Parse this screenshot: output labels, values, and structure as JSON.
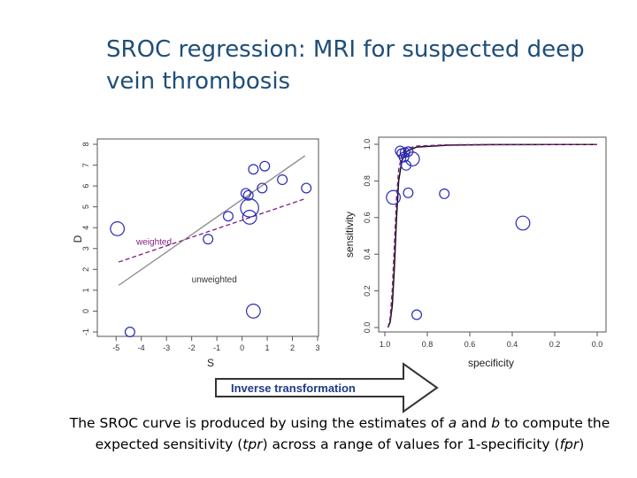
{
  "slide": {
    "title": "SROC regression: MRI for suspected deep vein thrombosis",
    "caption_parts": [
      "The SROC curve is produced by using the estimates of ",
      "a",
      " and ",
      "b",
      " to compute the expected sensitivity (",
      "tpr",
      ") across a range of values for 1-specificity (",
      "fpr",
      ")"
    ],
    "arrow_label": "Inverse transformation"
  },
  "colors": {
    "title": "#1f4e79",
    "points": "#2a2ab8",
    "weighted": "#7a1f7a",
    "unweighted": "#888888",
    "curve": "#111111"
  },
  "chart_data": [
    {
      "type": "scatter",
      "title": "",
      "xlabel": "S",
      "ylabel": "D",
      "xlim": [
        -5.5,
        3
      ],
      "ylim": [
        -1,
        8
      ],
      "xticks": [
        -5,
        -4,
        -3,
        -2,
        -1,
        0,
        1,
        2,
        3
      ],
      "yticks": [
        -1,
        0,
        1,
        2,
        3,
        4,
        5,
        6,
        7,
        8
      ],
      "points": [
        {
          "x": -4.95,
          "y": 3.95,
          "size": 2
        },
        {
          "x": -4.45,
          "y": -1.0,
          "size": 1
        },
        {
          "x": -1.35,
          "y": 3.45,
          "size": 1
        },
        {
          "x": -0.55,
          "y": 4.55,
          "size": 1
        },
        {
          "x": 0.15,
          "y": 5.65,
          "size": 1
        },
        {
          "x": 0.25,
          "y": 5.55,
          "size": 1
        },
        {
          "x": 0.3,
          "y": 4.95,
          "size": 3
        },
        {
          "x": 0.3,
          "y": 4.5,
          "size": 2
        },
        {
          "x": 0.45,
          "y": 6.8,
          "size": 1
        },
        {
          "x": 0.8,
          "y": 5.9,
          "size": 1
        },
        {
          "x": 0.9,
          "y": 6.95,
          "size": 1
        },
        {
          "x": 1.6,
          "y": 6.3,
          "size": 1
        },
        {
          "x": 2.55,
          "y": 5.9,
          "size": 1
        },
        {
          "x": 0.45,
          "y": 0.0,
          "size": 2
        }
      ],
      "lines": [
        {
          "name": "weighted",
          "style": "dashed",
          "intercept": 4.36,
          "slope": 0.41,
          "x_range": [
            -4.9,
            2.5
          ]
        },
        {
          "name": "unweighted",
          "style": "solid",
          "intercept": 5.35,
          "slope": 0.84,
          "x_range": [
            -4.9,
            2.5
          ]
        }
      ],
      "annotations": [
        "weighted",
        "unweighted"
      ]
    },
    {
      "type": "line",
      "title": "",
      "xlabel": "specificity",
      "ylabel": "sensitivity",
      "xlim": [
        1.0,
        0.0
      ],
      "ylim": [
        0.0,
        1.0
      ],
      "xticks": [
        1.0,
        0.8,
        0.6,
        0.4,
        0.2,
        0.0
      ],
      "yticks": [
        0.0,
        0.2,
        0.4,
        0.6,
        0.8,
        1.0
      ],
      "points": [
        {
          "x": 0.96,
          "y": 0.71,
          "size": 2
        },
        {
          "x": 0.72,
          "y": 0.73,
          "size": 1
        },
        {
          "x": 0.928,
          "y": 0.964,
          "size": 1
        },
        {
          "x": 0.92,
          "y": 0.95,
          "size": 1
        },
        {
          "x": 0.905,
          "y": 0.955,
          "size": 1
        },
        {
          "x": 0.91,
          "y": 0.93,
          "size": 1
        },
        {
          "x": 0.9,
          "y": 0.885,
          "size": 1
        },
        {
          "x": 0.89,
          "y": 0.96,
          "size": 1
        },
        {
          "x": 0.87,
          "y": 0.92,
          "size": 2
        },
        {
          "x": 0.89,
          "y": 0.735,
          "size": 1
        },
        {
          "x": 0.35,
          "y": 0.57,
          "size": 2
        },
        {
          "x": 0.85,
          "y": 0.07,
          "size": 1
        }
      ],
      "series": [
        {
          "name": "unweighted",
          "style": "solid",
          "x": [
            0.985,
            0.975,
            0.965,
            0.955,
            0.945,
            0.935,
            0.92,
            0.9,
            0.85,
            0.7,
            0.5,
            0.0
          ],
          "y": [
            0.0,
            0.03,
            0.12,
            0.33,
            0.6,
            0.8,
            0.91,
            0.96,
            0.985,
            0.995,
            0.998,
            0.999
          ]
        },
        {
          "name": "weighted",
          "style": "dashed",
          "x": [
            0.985,
            0.975,
            0.965,
            0.955,
            0.945,
            0.935,
            0.92,
            0.9,
            0.85,
            0.7,
            0.5,
            0.0
          ],
          "y": [
            0.0,
            0.05,
            0.2,
            0.45,
            0.7,
            0.86,
            0.94,
            0.975,
            0.99,
            0.997,
            0.998,
            0.999
          ]
        }
      ]
    }
  ]
}
